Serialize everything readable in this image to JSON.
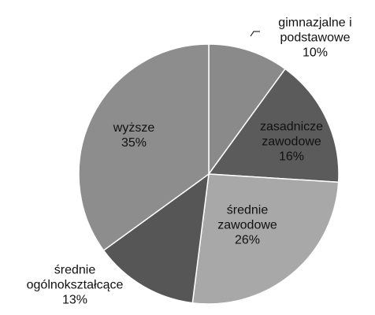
{
  "chart_data": {
    "type": "pie",
    "categories": [
      "gimnazjalne i podstawowe",
      "zasadnicze zawodowe",
      "średnie zawodowe",
      "średnie ogólnokształcące",
      "wyższe"
    ],
    "values": [
      10,
      16,
      26,
      13,
      35
    ],
    "value_labels": [
      "10%",
      "16%",
      "26%",
      "13%",
      "35%"
    ],
    "colors": [
      "#8a8a8a",
      "#5b5b5b",
      "#a8a8a8",
      "#565656",
      "#8d8d8d"
    ]
  }
}
